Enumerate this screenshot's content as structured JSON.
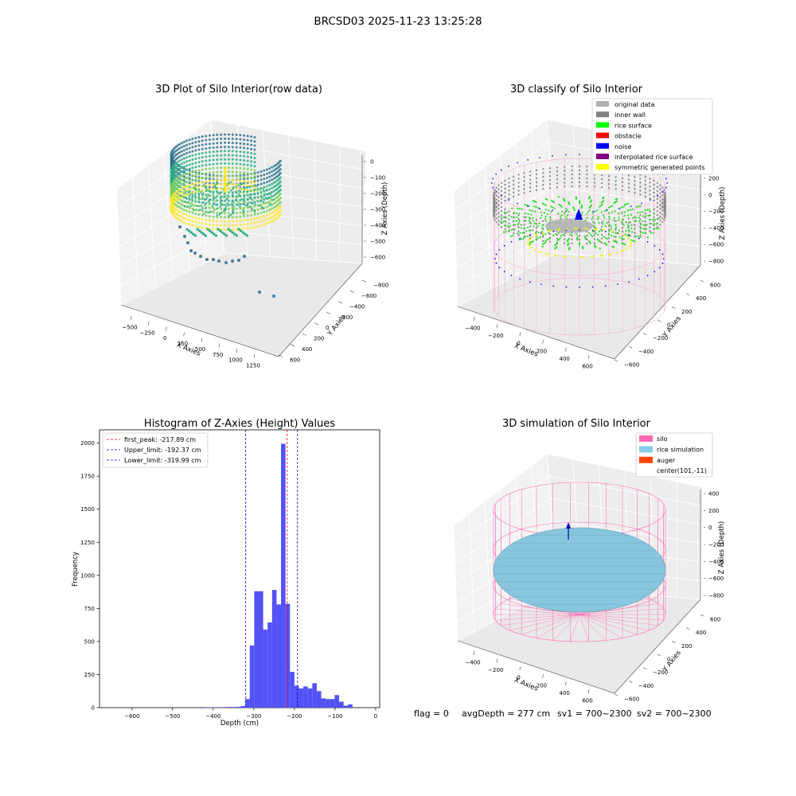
{
  "figure": {
    "suptitle": "BRCSD03 2025-11-23 13:25:28",
    "footer": {
      "flag": "flag = 0",
      "avg_depth": "avgDepth = 277 cm",
      "sv1": "sv1 = 700~2300",
      "sv2": "sv2 = 700~2300"
    }
  },
  "chart_data": [
    {
      "type": "scatter3d",
      "title": "3D Plot of Silo Interior(row data)",
      "xlabel": "X Axies",
      "ylabel": "Y Axies",
      "zlabel": "Z Axies (Depth)",
      "x_ticks": [
        "−500",
        "−250",
        "0",
        "250",
        "500",
        "750",
        "1000",
        "1250"
      ],
      "y_ticks": [
        "600",
        "400",
        "200",
        "0",
        "−200",
        "−400",
        "−600",
        "−800"
      ],
      "z_ticks": [
        "0",
        "−100",
        "−200",
        "−300",
        "−400",
        "−500",
        "−600"
      ],
      "colormap": [
        "#2c728e",
        "#28ae80",
        "#75d054",
        "#fde725"
      ]
    },
    {
      "type": "scatter3d",
      "title": "3D classify of Silo Interior",
      "xlabel": "X Axies",
      "ylabel": "Y Axies",
      "zlabel": "Z Axies (Depth)",
      "x_ticks": [
        "−400",
        "−200",
        "0",
        "200",
        "400",
        "600"
      ],
      "y_ticks": [
        "600",
        "400",
        "200",
        "0",
        "−200",
        "−400",
        "−600"
      ],
      "z_ticks": [
        "200",
        "0",
        "−200",
        "−400",
        "−600",
        "−800"
      ],
      "legend": [
        {
          "label": "original data",
          "color": "#b0b0b0"
        },
        {
          "label": "inner wall",
          "color": "#808080"
        },
        {
          "label": "rice surface",
          "color": "#00ff00"
        },
        {
          "label": "obstacle",
          "color": "#ff0000"
        },
        {
          "label": "noise",
          "color": "#0000ff"
        },
        {
          "label": "interpolated rice surface",
          "color": "#800080"
        },
        {
          "label": "symmetric generated points",
          "color": "#ffff00"
        }
      ],
      "legend_placement": "top-right"
    },
    {
      "type": "bar",
      "title": "Histogram of Z-Axies (Height) Values",
      "xlabel": "Depth (cm)",
      "ylabel": "Frequency",
      "xlim": [
        -680,
        10
      ],
      "ylim": [
        0,
        2100
      ],
      "x_ticks": [
        -600,
        -500,
        -400,
        -300,
        -200,
        -100,
        0
      ],
      "y_ticks": [
        0,
        250,
        500,
        750,
        1000,
        1250,
        1500,
        1750,
        2000
      ],
      "bar_color": "#4f4ff7",
      "bin_width": 11.0,
      "bins": [
        {
          "x": -420,
          "count": 3
        },
        {
          "x": -409,
          "count": 3
        },
        {
          "x": -398,
          "count": 3
        },
        {
          "x": -387,
          "count": 3
        },
        {
          "x": -376,
          "count": 4
        },
        {
          "x": -365,
          "count": 5
        },
        {
          "x": -354,
          "count": 5
        },
        {
          "x": -343,
          "count": 6
        },
        {
          "x": -332,
          "count": 12
        },
        {
          "x": -321,
          "count": 65
        },
        {
          "x": -310,
          "count": 470
        },
        {
          "x": -299,
          "count": 880
        },
        {
          "x": -288,
          "count": 880
        },
        {
          "x": -277,
          "count": 590
        },
        {
          "x": -266,
          "count": 645
        },
        {
          "x": -255,
          "count": 890
        },
        {
          "x": -244,
          "count": 780
        },
        {
          "x": -233,
          "count": 1995
        },
        {
          "x": -222,
          "count": 785
        },
        {
          "x": -211,
          "count": 270
        },
        {
          "x": -200,
          "count": 165
        },
        {
          "x": -189,
          "count": 145
        },
        {
          "x": -178,
          "count": 160
        },
        {
          "x": -167,
          "count": 145
        },
        {
          "x": -156,
          "count": 185
        },
        {
          "x": -145,
          "count": 125
        },
        {
          "x": -134,
          "count": 70
        },
        {
          "x": -123,
          "count": 65
        },
        {
          "x": -112,
          "count": 65
        },
        {
          "x": -101,
          "count": 95
        },
        {
          "x": -90,
          "count": 45
        },
        {
          "x": -79,
          "count": 15
        },
        {
          "x": -68,
          "count": 25
        }
      ],
      "xlim_note": "",
      "vlines": [
        {
          "label": "first_peak: -217.89 cm",
          "x": -217.89,
          "color": "#ff0000"
        },
        {
          "label": "Upper_limit: -192.37 cm",
          "x": -192.37,
          "color": "#0000ff"
        },
        {
          "label": "Lower_limit: -319.99 cm",
          "x": -319.99,
          "color": "#0000ff"
        }
      ],
      "legend_placement": "top-left"
    },
    {
      "type": "surface3d",
      "title": "3D simulation of Silo Interior",
      "xlabel": "X Axies",
      "ylabel": "Y Axies",
      "zlabel": "Z Axies (Depth)",
      "x_ticks": [
        "−400",
        "−200",
        "0",
        "200",
        "400",
        "600"
      ],
      "y_ticks": [
        "600",
        "400",
        "200",
        "0",
        "−200",
        "−400",
        "−600"
      ],
      "z_ticks": [
        "400",
        "200",
        "0",
        "−200",
        "−400",
        "−600",
        "−800"
      ],
      "legend": [
        {
          "label": "silo",
          "color": "#ff69b4"
        },
        {
          "label": "rice simulation",
          "color": "#87ceeb"
        },
        {
          "label": "auger",
          "color": "#ff4500"
        },
        {
          "label": "center(101,-11)",
          "color": ""
        }
      ],
      "legend_placement": "top-right"
    }
  ]
}
